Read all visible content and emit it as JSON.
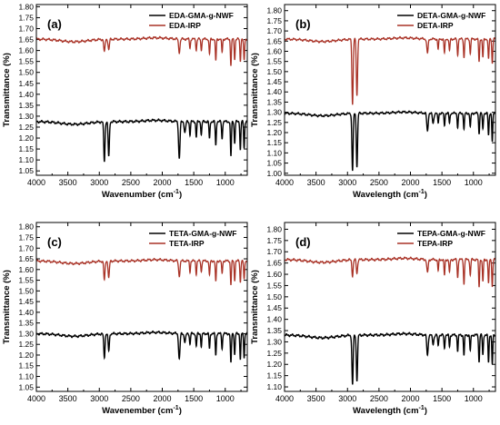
{
  "chart_data": [
    {
      "type": "line",
      "panel_label": "(a)",
      "xlabel": "Wavenumber (cm",
      "xlabel_sup": "-1",
      "xlabel_close": ")",
      "ylabel": "Transmittance (%)",
      "xlim": [
        4000,
        650
      ],
      "ylim": [
        1.03,
        1.81
      ],
      "xticks": [
        4000,
        3500,
        3000,
        2500,
        2000,
        1500,
        1000
      ],
      "yticks": [
        "1.05",
        "1.10",
        "1.15",
        "1.20",
        "1.25",
        "1.30",
        "1.35",
        "1.40",
        "1.45",
        "1.50",
        "1.55",
        "1.60",
        "1.65",
        "1.70",
        "1.75",
        "1.80"
      ],
      "legend_position": "top-right",
      "colors": {
        "grafted": "#000000",
        "irp": "#a93226"
      },
      "series": [
        {
          "name": "EDA-GMA-g-NWF",
          "baseline": 1.275,
          "bands": [
            [
              2920,
              0.18
            ],
            [
              2850,
              0.16
            ],
            [
              1730,
              0.17
            ],
            [
              1640,
              0.05
            ],
            [
              1560,
              0.06
            ],
            [
              1460,
              0.07
            ],
            [
              1380,
              0.06
            ],
            [
              1250,
              0.08
            ],
            [
              1150,
              0.11
            ],
            [
              1050,
              0.08
            ],
            [
              910,
              0.16
            ],
            [
              850,
              0.1
            ],
            [
              760,
              0.13
            ],
            [
              700,
              0.12
            ]
          ]
        },
        {
          "name": "EDA-IRP",
          "baseline": 1.652,
          "bands": [
            [
              2920,
              0.06
            ],
            [
              2850,
              0.05
            ],
            [
              1730,
              0.06
            ],
            [
              1560,
              0.04
            ],
            [
              1460,
              0.05
            ],
            [
              1380,
              0.05
            ],
            [
              1250,
              0.07
            ],
            [
              1150,
              0.1
            ],
            [
              1050,
              0.06
            ],
            [
              910,
              0.12
            ],
            [
              850,
              0.09
            ],
            [
              760,
              0.1
            ],
            [
              700,
              0.1
            ]
          ]
        }
      ]
    },
    {
      "type": "line",
      "panel_label": "(b)",
      "xlabel": "Wavelength (cm",
      "xlabel_sup": "-1",
      "xlabel_close": ")",
      "ylabel": "Transmittance (%)",
      "xlim": [
        4000,
        650
      ],
      "ylim": [
        0.99,
        1.83
      ],
      "xticks": [
        4000,
        3500,
        3000,
        2500,
        2000,
        1500,
        1000
      ],
      "yticks": [
        "1.00",
        "1.05",
        "1.10",
        "1.15",
        "1.20",
        "1.25",
        "1.30",
        "1.35",
        "1.40",
        "1.45",
        "1.50",
        "1.55",
        "1.60",
        "1.65",
        "1.70",
        "1.75",
        "1.80"
      ],
      "legend_position": "top-right",
      "colors": {
        "grafted": "#000000",
        "irp": "#a93226"
      },
      "series": [
        {
          "name": "DETA-GMA-g-NWF",
          "baseline": 1.295,
          "bands": [
            [
              2920,
              0.28
            ],
            [
              2850,
              0.26
            ],
            [
              1730,
              0.09
            ],
            [
              1640,
              0.05
            ],
            [
              1560,
              0.05
            ],
            [
              1460,
              0.06
            ],
            [
              1380,
              0.05
            ],
            [
              1250,
              0.07
            ],
            [
              1150,
              0.08
            ],
            [
              1050,
              0.07
            ],
            [
              910,
              0.1
            ],
            [
              850,
              0.08
            ],
            [
              760,
              0.11
            ],
            [
              700,
              0.14
            ]
          ]
        },
        {
          "name": "DETA-IRP",
          "baseline": 1.66,
          "bands": [
            [
              2920,
              0.32
            ],
            [
              2850,
              0.28
            ],
            [
              1730,
              0.07
            ],
            [
              1560,
              0.05
            ],
            [
              1460,
              0.07
            ],
            [
              1380,
              0.06
            ],
            [
              1250,
              0.08
            ],
            [
              1150,
              0.09
            ],
            [
              1050,
              0.07
            ],
            [
              910,
              0.11
            ],
            [
              850,
              0.09
            ],
            [
              760,
              0.1
            ],
            [
              700,
              0.12
            ]
          ]
        }
      ]
    },
    {
      "type": "line",
      "panel_label": "(c)",
      "xlabel": "Wavenember (cm",
      "xlabel_sup": "-1",
      "xlabel_close": ")",
      "ylabel": "Transmittance (%)",
      "xlim": [
        4000,
        650
      ],
      "ylim": [
        1.03,
        1.82
      ],
      "xticks": [
        4000,
        3500,
        3000,
        2500,
        2000,
        1500,
        1000
      ],
      "yticks": [
        "1.05",
        "1.10",
        "1.15",
        "1.20",
        "1.25",
        "1.30",
        "1.35",
        "1.40",
        "1.45",
        "1.50",
        "1.55",
        "1.60",
        "1.65",
        "1.70",
        "1.75",
        "1.80"
      ],
      "legend_position": "top-right",
      "colors": {
        "grafted": "#000000",
        "irp": "#a93226"
      },
      "series": [
        {
          "name": "TETA-GMA-g-NWF",
          "baseline": 1.3,
          "bands": [
            [
              2920,
              0.11
            ],
            [
              2850,
              0.08
            ],
            [
              1730,
              0.12
            ],
            [
              1640,
              0.04
            ],
            [
              1560,
              0.05
            ],
            [
              1460,
              0.06
            ],
            [
              1380,
              0.06
            ],
            [
              1250,
              0.07
            ],
            [
              1150,
              0.1
            ],
            [
              1050,
              0.07
            ],
            [
              910,
              0.14
            ],
            [
              850,
              0.1
            ],
            [
              760,
              0.12
            ],
            [
              700,
              0.11
            ]
          ]
        },
        {
          "name": "TETA-IRP",
          "baseline": 1.64,
          "bands": [
            [
              2920,
              0.09
            ],
            [
              2850,
              0.08
            ],
            [
              1730,
              0.07
            ],
            [
              1560,
              0.05
            ],
            [
              1460,
              0.06
            ],
            [
              1380,
              0.05
            ],
            [
              1250,
              0.07
            ],
            [
              1150,
              0.1
            ],
            [
              1050,
              0.06
            ],
            [
              910,
              0.11
            ],
            [
              850,
              0.09
            ],
            [
              760,
              0.1
            ],
            [
              700,
              0.09
            ]
          ]
        }
      ]
    },
    {
      "type": "line",
      "panel_label": "(d)",
      "xlabel": "Wavelength (cm",
      "xlabel_sup": "-1",
      "xlabel_close": ")",
      "ylabel": "Transmittance (%)",
      "xlim": [
        4000,
        650
      ],
      "ylim": [
        1.08,
        1.83
      ],
      "xticks": [
        4000,
        3500,
        3000,
        2500,
        2000,
        1500,
        1000
      ],
      "yticks": [
        "1.10",
        "1.15",
        "1.20",
        "1.25",
        "1.30",
        "1.35",
        "1.40",
        "1.45",
        "1.50",
        "1.55",
        "1.60",
        "1.65",
        "1.70",
        "1.75",
        "1.80"
      ],
      "legend_position": "top-right",
      "colors": {
        "grafted": "#000000",
        "irp": "#a93226"
      },
      "series": [
        {
          "name": "TEPA-GMA-g-NWF",
          "baseline": 1.33,
          "bands": [
            [
              2920,
              0.22
            ],
            [
              2850,
              0.2
            ],
            [
              1730,
              0.09
            ],
            [
              1640,
              0.04
            ],
            [
              1560,
              0.05
            ],
            [
              1460,
              0.06
            ],
            [
              1380,
              0.05
            ],
            [
              1250,
              0.07
            ],
            [
              1150,
              0.09
            ],
            [
              1050,
              0.07
            ],
            [
              910,
              0.12
            ],
            [
              850,
              0.09
            ],
            [
              760,
              0.12
            ],
            [
              700,
              0.13
            ]
          ]
        },
        {
          "name": "TEPA-IRP",
          "baseline": 1.665,
          "bands": [
            [
              2920,
              0.07
            ],
            [
              2850,
              0.06
            ],
            [
              1730,
              0.06
            ],
            [
              1560,
              0.05
            ],
            [
              1460,
              0.07
            ],
            [
              1380,
              0.06
            ],
            [
              1250,
              0.08
            ],
            [
              1150,
              0.11
            ],
            [
              1050,
              0.07
            ],
            [
              910,
              0.12
            ],
            [
              850,
              0.1
            ],
            [
              760,
              0.11
            ],
            [
              700,
              0.12
            ]
          ]
        }
      ]
    }
  ]
}
